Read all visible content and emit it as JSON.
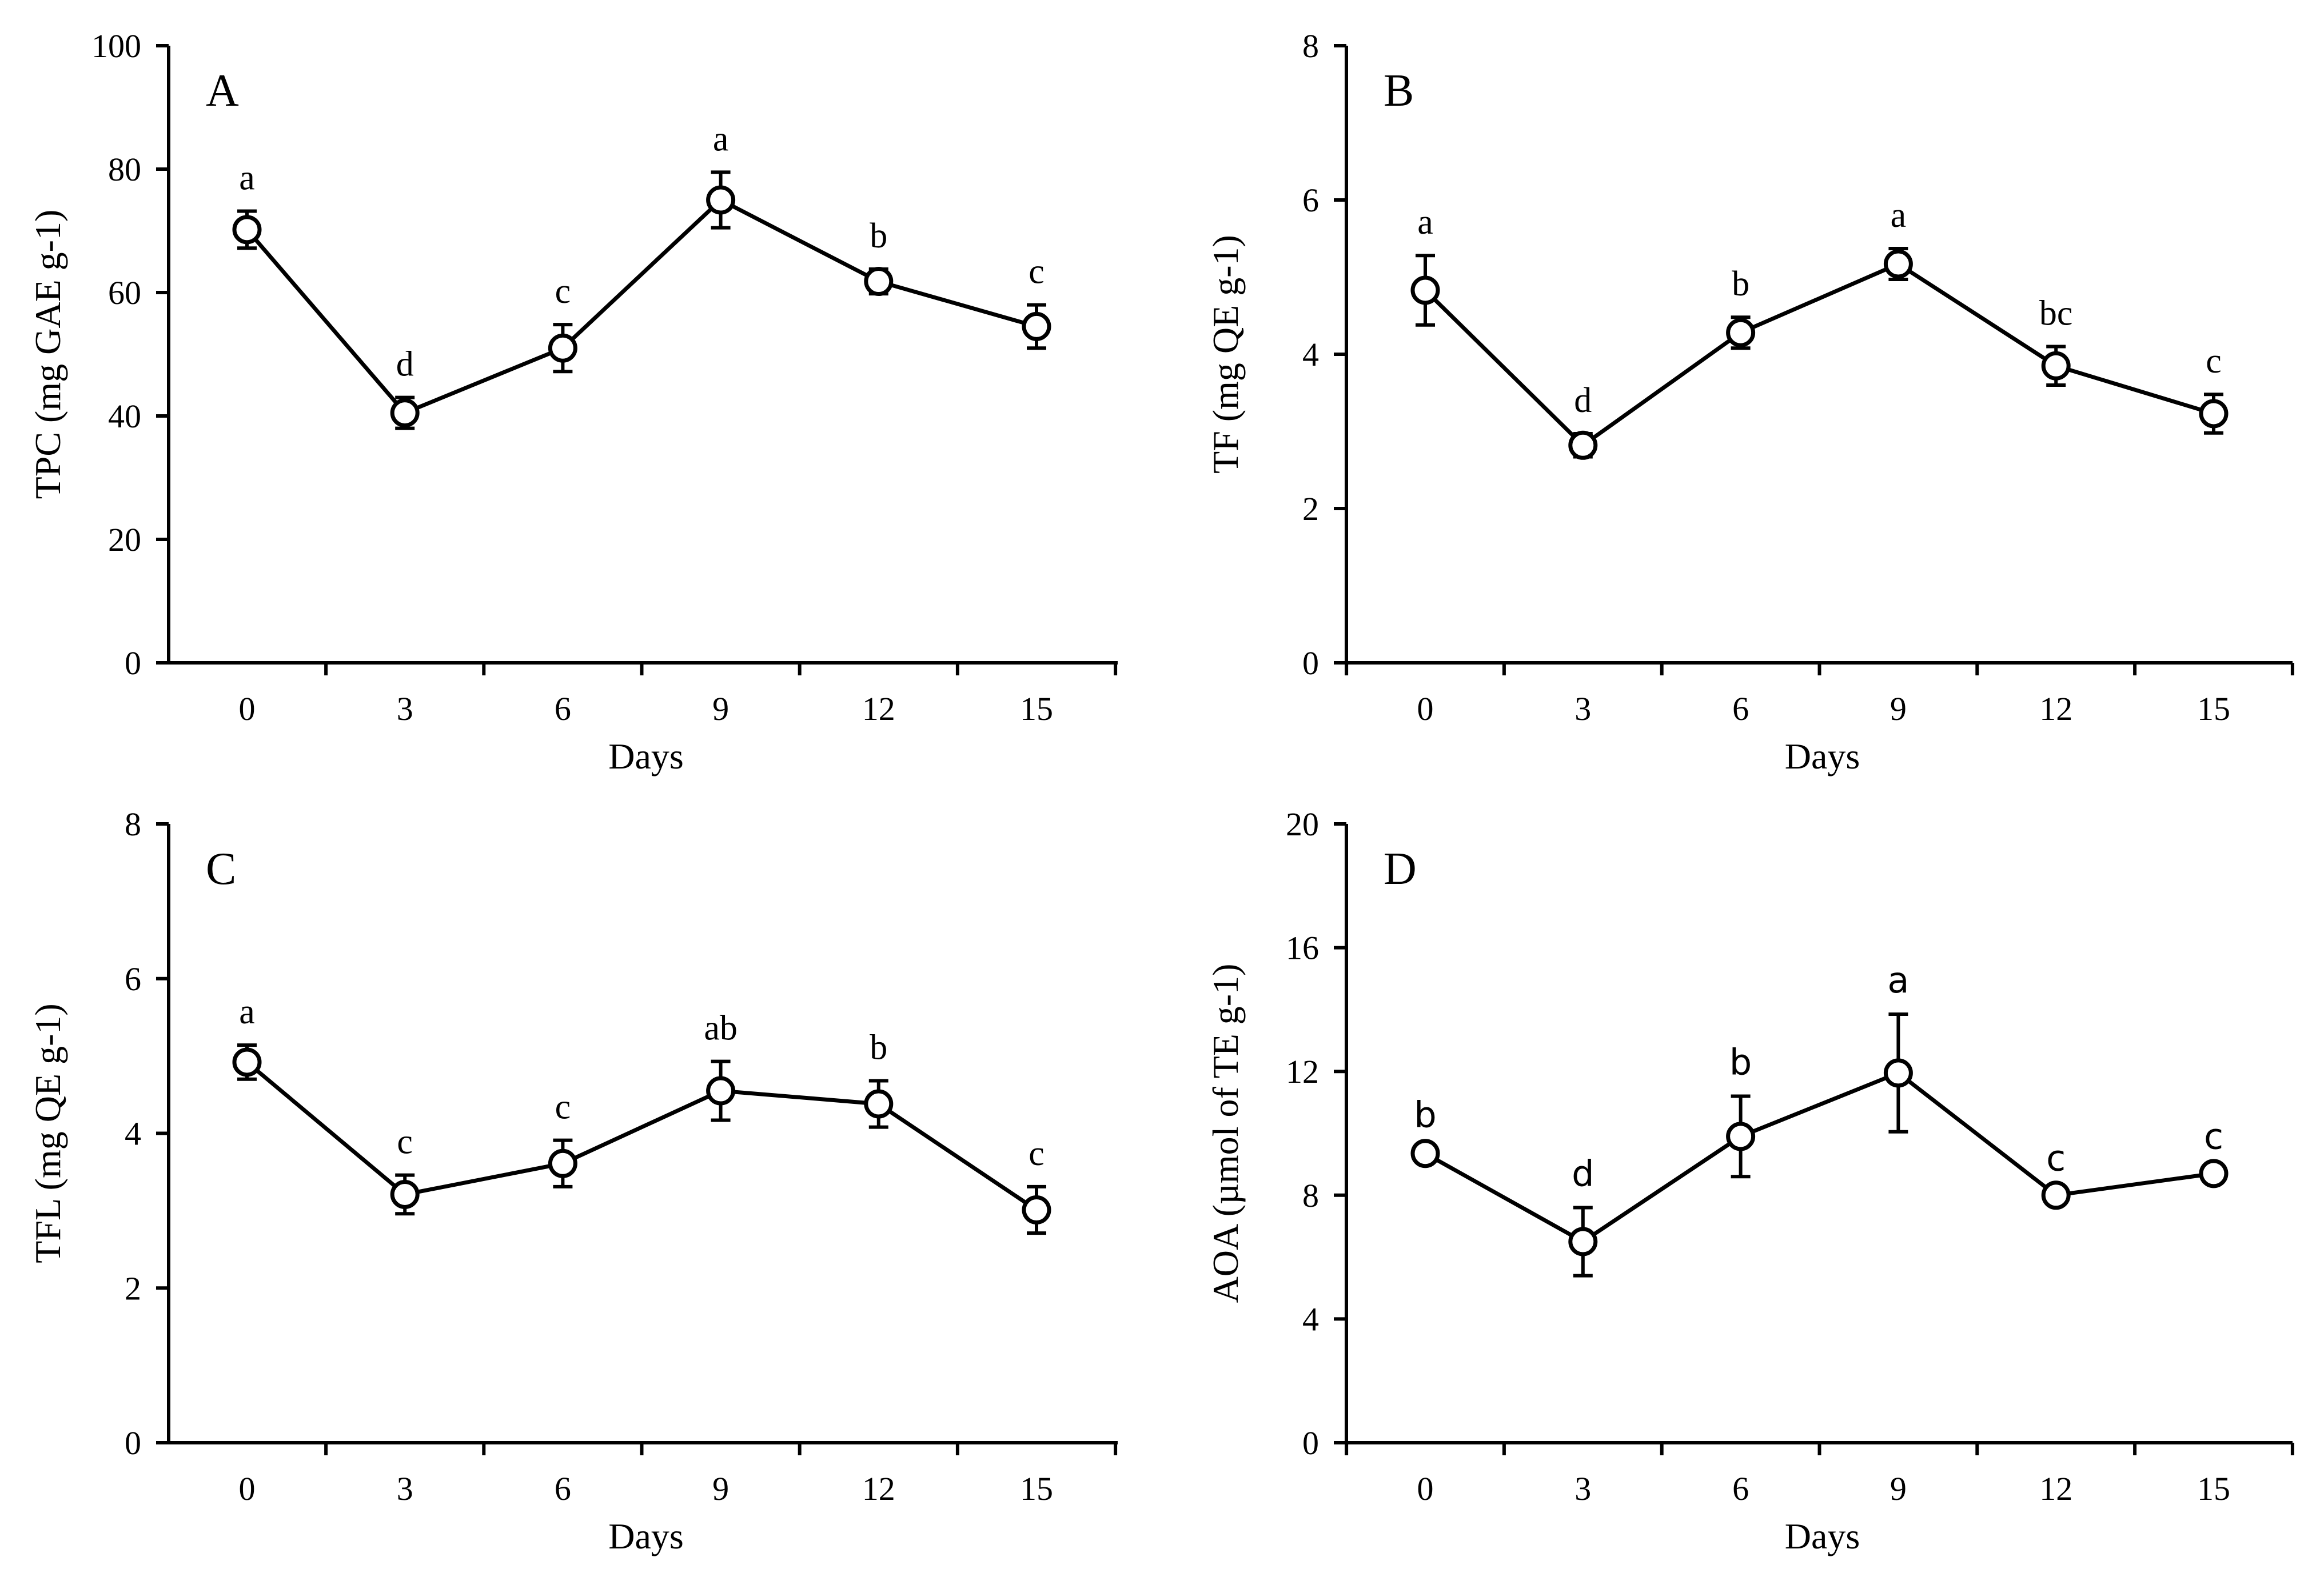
{
  "chart_data": [
    {
      "panel": "A",
      "type": "line",
      "title": "",
      "xlabel": "Days",
      "ylabel": "TPC (mg GAE g-1)",
      "categories": [
        "0",
        "3",
        "6",
        "9",
        "12",
        "15"
      ],
      "x": [
        0,
        3,
        6,
        9,
        12,
        15
      ],
      "y": [
        70.2,
        40.5,
        51.0,
        75.0,
        61.8,
        54.5
      ],
      "err": [
        3.0,
        2.5,
        3.8,
        4.5,
        2.0,
        3.5
      ],
      "letters": [
        "a",
        "d",
        "c",
        "a",
        "b",
        "c"
      ],
      "letter_font": "serif",
      "ylim": [
        0,
        100
      ],
      "yticks": [
        "0",
        "20",
        "40",
        "60",
        "80",
        "100"
      ],
      "legend": "none",
      "grid": false
    },
    {
      "panel": "B",
      "type": "line",
      "title": "",
      "xlabel": "Days",
      "ylabel": "TF (mg QE g-1)",
      "categories": [
        "0",
        "3",
        "6",
        "9",
        "12",
        "15"
      ],
      "x": [
        0,
        3,
        6,
        9,
        12,
        15
      ],
      "y": [
        4.83,
        2.82,
        4.28,
        5.17,
        3.85,
        3.23
      ],
      "err": [
        0.45,
        0.15,
        0.2,
        0.2,
        0.25,
        0.25
      ],
      "letters": [
        "a",
        "d",
        "b",
        "a",
        "bc",
        "c"
      ],
      "letter_font": "serif",
      "ylim": [
        0,
        8
      ],
      "yticks": [
        "0",
        "2",
        "4",
        "6",
        "8"
      ],
      "legend": "none",
      "grid": false
    },
    {
      "panel": "C",
      "type": "line",
      "title": "",
      "xlabel": "Days",
      "ylabel": "TFL (mg QE g-1)",
      "categories": [
        "0",
        "3",
        "6",
        "9",
        "12",
        "15"
      ],
      "x": [
        0,
        3,
        6,
        9,
        12,
        15
      ],
      "y": [
        4.92,
        3.21,
        3.61,
        4.55,
        4.38,
        3.01
      ],
      "err": [
        0.22,
        0.25,
        0.3,
        0.38,
        0.3,
        0.3
      ],
      "letters": [
        "a",
        "c",
        "c",
        "ab",
        "b",
        "c"
      ],
      "letter_font": "serif",
      "ylim": [
        0,
        8
      ],
      "yticks": [
        "0",
        "2",
        "4",
        "6",
        "8"
      ],
      "legend": "none",
      "grid": false
    },
    {
      "panel": "D",
      "type": "line",
      "title": "",
      "xlabel": "Days",
      "ylabel": "AOA (µmol of TE g-1)",
      "categories": [
        "0",
        "3",
        "6",
        "9",
        "12",
        "15"
      ],
      "x": [
        0,
        3,
        6,
        9,
        12,
        15
      ],
      "y": [
        9.35,
        6.5,
        9.9,
        11.95,
        8.0,
        8.7
      ],
      "err": [
        0.15,
        1.1,
        1.3,
        1.9,
        0.1,
        0.1
      ],
      "letters": [
        "b",
        "d",
        "b",
        "a",
        "c",
        "c"
      ],
      "letter_font": "sans",
      "ylim": [
        0,
        20
      ],
      "yticks": [
        "0",
        "4",
        "8",
        "12",
        "16",
        "20"
      ],
      "legend": "none",
      "grid": false
    }
  ]
}
